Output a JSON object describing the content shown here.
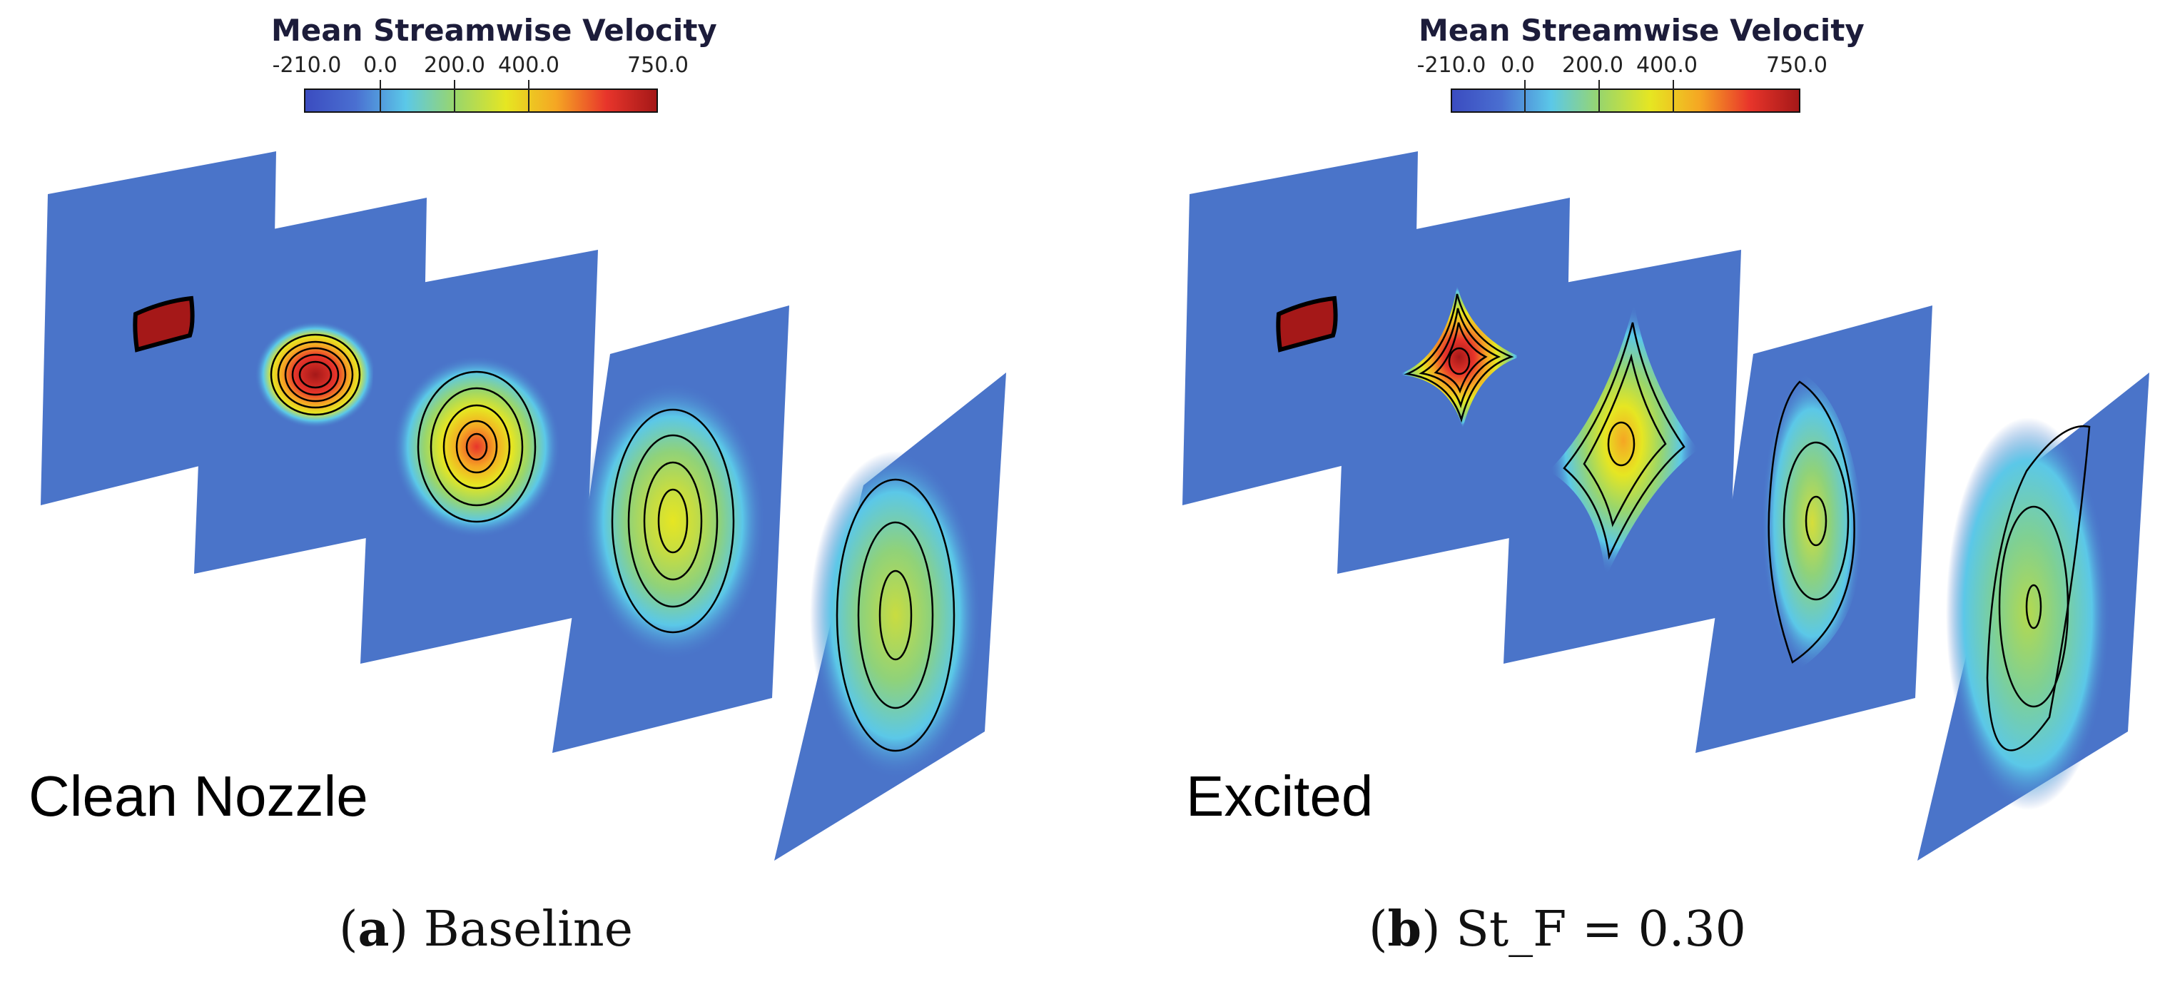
{
  "colorbar": {
    "title": "Mean Streamwise Velocity",
    "ticks": [
      "-210.0",
      "0.0",
      "200.0",
      "400.0",
      "750.0"
    ],
    "tick_values": [
      -210,
      0,
      200,
      400,
      750
    ],
    "colormap": [
      "#3b4cc0",
      "#4a6fd1",
      "#5bc8e8",
      "#9ad66a",
      "#e6e622",
      "#f5a623",
      "#e8352b",
      "#a51818"
    ]
  },
  "panels": [
    {
      "scene_label": "Clean Nozzle",
      "caption_letter": "a",
      "caption_text": "Baseline"
    },
    {
      "scene_label": "Excited",
      "caption_letter": "b",
      "caption_text": "St_F = 0.30"
    }
  ]
}
